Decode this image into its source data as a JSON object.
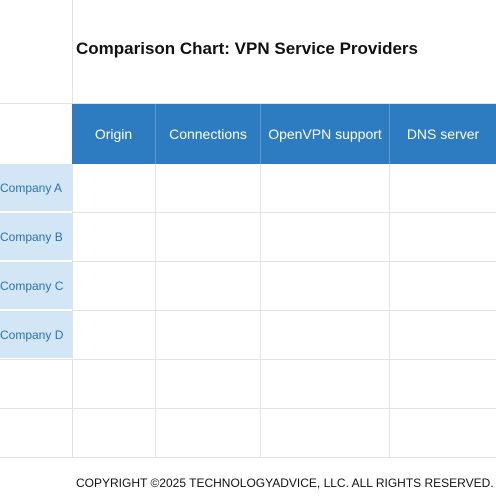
{
  "title": "Comparison Chart: VPN Service Providers",
  "columns": [
    "Origin",
    "Connections",
    "OpenVPN support",
    "DNS server"
  ],
  "rows": [
    "Company A",
    "Company B",
    "Company C",
    "Company D"
  ],
  "footer": "COPYRIGHT ©2025 TECHNOLOGYADVICE, LLC. ALL RIGHTS RESERVED.",
  "colors": {
    "header_bg": "#2d7cc1",
    "row_header_bg": "#d3e6f6",
    "row_header_text": "#2a72b5"
  }
}
